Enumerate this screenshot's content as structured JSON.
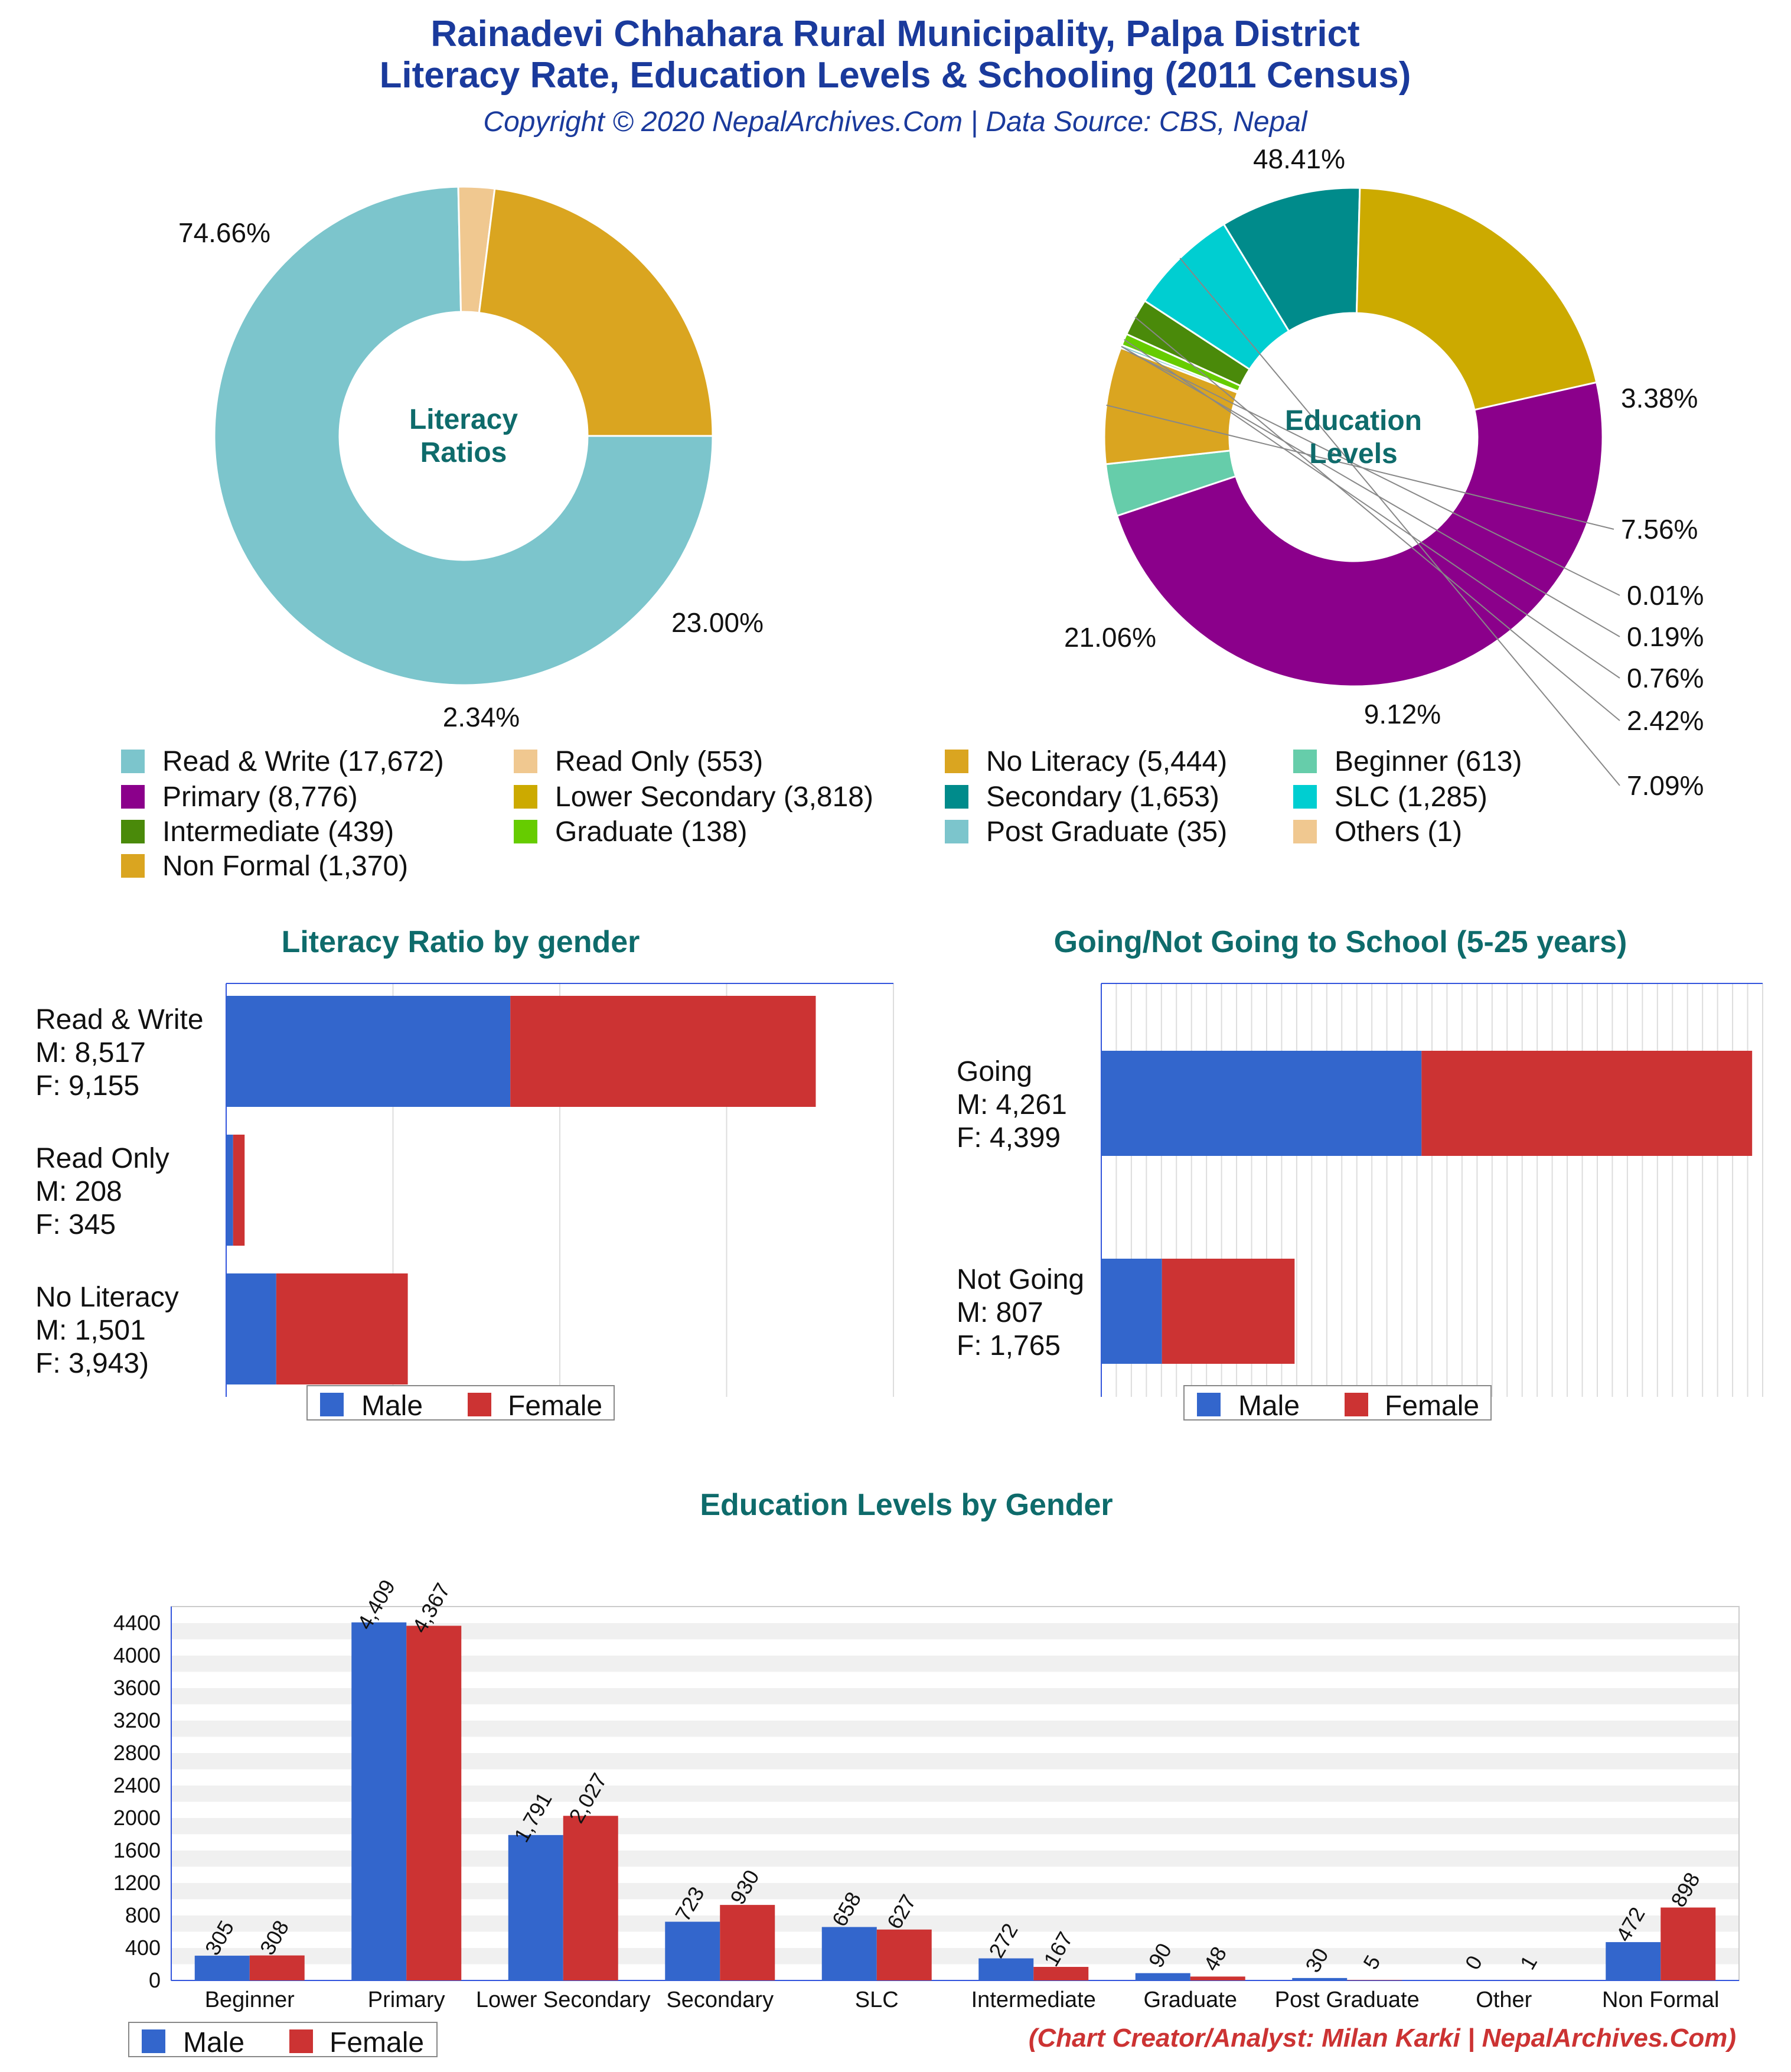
{
  "header": {
    "title_line1": "Rainadevi Chhahara Rural Municipality, Palpa District",
    "title_line2": "Literacy Rate, Education Levels & Schooling (2011 Census)",
    "subtitle": "Copyright © 2020 NepalArchives.Com | Data Source: CBS, Nepal"
  },
  "footer": {
    "credit": "(Chart Creator/Analyst: Milan Karki | NepalArchives.Com)"
  },
  "colors": {
    "title": "#1a3a9c",
    "section_title": "#0e6b6b",
    "male": "#3366cc",
    "female": "#cc3333",
    "credit": "#cc3333"
  },
  "legend": {
    "items": [
      {
        "label": "Read & Write (17,672)",
        "color": "#7cc5cc"
      },
      {
        "label": "Read Only (553)",
        "color": "#f0c890"
      },
      {
        "label": "No Literacy (5,444)",
        "color": "#daa520"
      },
      {
        "label": "Beginner (613)",
        "color": "#66cdaa"
      },
      {
        "label": "Primary (8,776)",
        "color": "#8b008b"
      },
      {
        "label": "Lower Secondary (3,818)",
        "color": "#ccaa00"
      },
      {
        "label": "Secondary (1,653)",
        "color": "#008b8b"
      },
      {
        "label": "SLC (1,285)",
        "color": "#00ced1"
      },
      {
        "label": "Intermediate (439)",
        "color": "#4a8a0a"
      },
      {
        "label": "Graduate (138)",
        "color": "#66cc00"
      },
      {
        "label": "Post Graduate (35)",
        "color": "#7cc5cc"
      },
      {
        "label": "Others (1)",
        "color": "#f0c890"
      },
      {
        "label": "Non Formal (1,370)",
        "color": "#daa520"
      }
    ]
  },
  "chart_data": [
    {
      "type": "pie",
      "variant": "donut",
      "center_label": [
        "Literacy",
        "Ratios"
      ],
      "slices": [
        {
          "name": "Read & Write",
          "value": 17672,
          "pct_label": "74.66%",
          "color": "#7cc5cc"
        },
        {
          "name": "Read Only",
          "value": 553,
          "pct_label": "2.34%",
          "color": "#f0c890"
        },
        {
          "name": "No Literacy",
          "value": 5444,
          "pct_label": "23.00%",
          "color": "#daa520"
        }
      ]
    },
    {
      "type": "pie",
      "variant": "donut",
      "center_label": [
        "Education",
        "Levels"
      ],
      "slices": [
        {
          "name": "Primary",
          "value": 8776,
          "pct_label": "48.41%",
          "color": "#8b008b"
        },
        {
          "name": "Beginner",
          "value": 613,
          "pct_label": "3.38%",
          "color": "#66cdaa"
        },
        {
          "name": "Non Formal",
          "value": 1370,
          "pct_label": "7.56%",
          "color": "#daa520"
        },
        {
          "name": "Others",
          "value": 1,
          "pct_label": "0.01%",
          "color": "#f0c890"
        },
        {
          "name": "Post Graduate",
          "value": 35,
          "pct_label": "0.19%",
          "color": "#7cc5cc"
        },
        {
          "name": "Graduate",
          "value": 138,
          "pct_label": "0.76%",
          "color": "#66cc00"
        },
        {
          "name": "Intermediate",
          "value": 439,
          "pct_label": "2.42%",
          "color": "#4a8a0a"
        },
        {
          "name": "SLC",
          "value": 1285,
          "pct_label": "7.09%",
          "color": "#00ced1"
        },
        {
          "name": "Secondary",
          "value": 1653,
          "pct_label": "9.12%",
          "color": "#008b8b"
        },
        {
          "name": "Lower Secondary",
          "value": 3818,
          "pct_label": "21.06%",
          "color": "#ccaa00"
        }
      ]
    },
    {
      "type": "bar",
      "orientation": "horizontal",
      "stacked": true,
      "title": "Literacy Ratio by gender",
      "categories": [
        [
          "Read & Write",
          "M: 8,517",
          "F: 9,155"
        ],
        [
          "Read Only",
          "M: 208",
          "F: 345"
        ],
        [
          "No Literacy",
          "M: 1,501",
          "F: 3,943)"
        ]
      ],
      "series": [
        {
          "name": "Male",
          "values": [
            8517,
            208,
            1501
          ]
        },
        {
          "name": "Female",
          "values": [
            9155,
            345,
            3943
          ]
        }
      ],
      "xlim": [
        0,
        20000
      ]
    },
    {
      "type": "bar",
      "orientation": "horizontal",
      "stacked": true,
      "title": "Going/Not Going to School (5-25 years)",
      "categories": [
        [
          "Going",
          "M: 4,261",
          "F: 4,399"
        ],
        [
          "Not Going",
          "M: 807",
          "F: 1,765"
        ]
      ],
      "series": [
        {
          "name": "Male",
          "values": [
            4261,
            807
          ]
        },
        {
          "name": "Female",
          "values": [
            4399,
            1765
          ]
        }
      ],
      "xlim": [
        0,
        8800
      ]
    },
    {
      "type": "bar",
      "orientation": "vertical",
      "stacked": false,
      "title": "Education Levels by Gender",
      "categories": [
        "Beginner",
        "Primary",
        "Lower Secondary",
        "Secondary",
        "SLC",
        "Intermediate",
        "Graduate",
        "Post Graduate",
        "Other",
        "Non Formal"
      ],
      "series": [
        {
          "name": "Male",
          "values": [
            305,
            4409,
            1791,
            723,
            658,
            272,
            90,
            30,
            0,
            472
          ],
          "labels": [
            "305",
            "4,409",
            "1,791",
            "723",
            "658",
            "272",
            "90",
            "30",
            "0",
            "472"
          ]
        },
        {
          "name": "Female",
          "values": [
            308,
            4367,
            2027,
            930,
            627,
            167,
            48,
            5,
            1,
            898
          ],
          "labels": [
            "308",
            "4,367",
            "2,027",
            "930",
            "627",
            "167",
            "48",
            "5",
            "1",
            "898"
          ]
        }
      ],
      "yticks": [
        "0",
        "400",
        "800",
        "1200",
        "1600",
        "2000",
        "2400",
        "2800",
        "3200",
        "3600",
        "4000",
        "4400"
      ],
      "ylim": [
        0,
        4400
      ]
    }
  ]
}
